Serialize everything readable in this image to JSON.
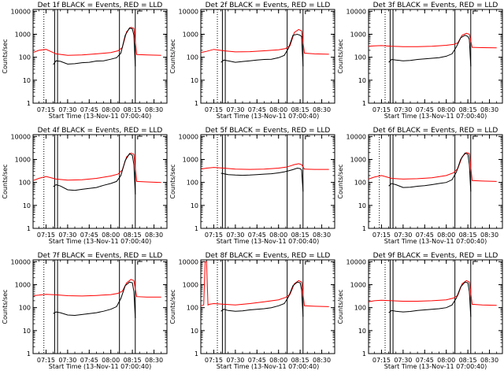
{
  "figure": {
    "colors": {
      "events": "#000000",
      "lld": "#ff0000",
      "axes": "#000000",
      "background": "#ffffff"
    }
  },
  "chart_data": [
    {
      "type": "line",
      "title": "Det 1f BLACK = Events, RED = LLD",
      "xlabel": "Start Time (13-Nov-11 07:00:40)",
      "ylabel": "Counts/sec",
      "x_ticks": [
        "07:15",
        "07:30",
        "07:45",
        "08:00",
        "08:15",
        "08:30"
      ],
      "y_ticks": [
        "1",
        "10",
        "100",
        "1000",
        "10000"
      ],
      "xlim": [
        "07:06",
        "08:39"
      ],
      "ylim": [
        1,
        12000
      ],
      "y_scale": "log",
      "dotted_lines": [
        "07:13.5"
      ],
      "solid_lines": [
        "07:21",
        "07:23",
        "08:06",
        "08:17"
      ],
      "series": [
        {
          "color": "#000000",
          "x": [
            "07:20",
            "07:22",
            "07:25",
            "07:30",
            "07:35",
            "07:40",
            "07:45",
            "07:50",
            "07:55",
            "08:00",
            "08:04",
            "08:07",
            "08:10",
            "08:13",
            "08:15",
            "08:16",
            "08:17"
          ],
          "values": [
            48,
            70,
            66,
            50,
            52,
            58,
            60,
            68,
            70,
            82,
            95,
            150,
            900,
            1900,
            1700,
            900,
            40
          ]
        },
        {
          "color": "#ff0000",
          "x": [
            "07:06",
            "07:10",
            "07:15",
            "07:22",
            "07:30",
            "07:40",
            "07:50",
            "08:00",
            "08:05",
            "08:08",
            "08:11",
            "08:14",
            "08:16",
            "08:18",
            "08:25",
            "08:35"
          ],
          "values": [
            160,
            200,
            220,
            140,
            120,
            125,
            140,
            160,
            190,
            260,
            1300,
            2000,
            1800,
            130,
            125,
            120
          ]
        }
      ]
    },
    {
      "type": "line",
      "title": "Det 2f BLACK = Events, RED = LLD",
      "xlabel": "Start Time (13-Nov-11 07:00:40)",
      "ylabel": "Counts/sec",
      "x_ticks": [
        "07:15",
        "07:30",
        "07:45",
        "08:00",
        "08:15",
        "08:30"
      ],
      "y_ticks": [
        "1",
        "10",
        "100",
        "1000",
        "10000"
      ],
      "xlim": [
        "07:06",
        "08:39"
      ],
      "ylim": [
        1,
        12000
      ],
      "y_scale": "log",
      "dotted_lines": [
        "07:17.5"
      ],
      "solid_lines": [
        "07:21",
        "07:23",
        "08:06",
        "08:17"
      ],
      "series": [
        {
          "color": "#000000",
          "x": [
            "07:20",
            "07:22",
            "07:25",
            "07:30",
            "07:35",
            "07:40",
            "07:45",
            "07:50",
            "07:55",
            "08:00",
            "08:04",
            "08:07",
            "08:10",
            "08:13",
            "08:15",
            "08:16",
            "08:17"
          ],
          "values": [
            60,
            75,
            70,
            60,
            65,
            70,
            75,
            80,
            82,
            95,
            120,
            250,
            900,
            1000,
            900,
            800,
            40
          ]
        },
        {
          "color": "#ff0000",
          "x": [
            "07:06",
            "07:10",
            "07:15",
            "07:22",
            "07:30",
            "07:40",
            "07:50",
            "08:00",
            "08:05",
            "08:08",
            "08:11",
            "08:14",
            "08:16",
            "08:18",
            "08:25",
            "08:35"
          ],
          "values": [
            160,
            180,
            220,
            190,
            170,
            175,
            190,
            210,
            240,
            320,
            1200,
            1600,
            1400,
            150,
            140,
            135
          ]
        }
      ]
    },
    {
      "type": "line",
      "title": "Det 3f BLACK = Events, RED = LLD",
      "xlabel": "Start Time (13-Nov-11 07:00:40)",
      "ylabel": "Counts/sec",
      "x_ticks": [
        "07:15",
        "07:30",
        "07:45",
        "08:00",
        "08:15",
        "08:30"
      ],
      "y_ticks": [
        "1",
        "10",
        "100",
        "1000",
        "10000"
      ],
      "xlim": [
        "07:06",
        "08:39"
      ],
      "ylim": [
        1,
        12000
      ],
      "y_scale": "log",
      "dotted_lines": [
        "07:17.5"
      ],
      "solid_lines": [
        "07:21",
        "07:23",
        "08:06",
        "08:17"
      ],
      "series": [
        {
          "color": "#000000",
          "x": [
            "07:20",
            "07:22",
            "07:25",
            "07:30",
            "07:35",
            "07:40",
            "07:45",
            "07:50",
            "07:55",
            "08:00",
            "08:04",
            "08:07",
            "08:10",
            "08:13",
            "08:15",
            "08:16",
            "08:17"
          ],
          "values": [
            60,
            80,
            75,
            70,
            72,
            80,
            85,
            90,
            95,
            110,
            140,
            280,
            700,
            900,
            800,
            600,
            40
          ]
        },
        {
          "color": "#ff0000",
          "x": [
            "07:06",
            "07:10",
            "07:15",
            "07:22",
            "07:30",
            "07:40",
            "07:50",
            "08:00",
            "08:05",
            "08:08",
            "08:11",
            "08:14",
            "08:16",
            "08:18",
            "08:25",
            "08:35"
          ],
          "values": [
            300,
            310,
            320,
            300,
            290,
            290,
            300,
            330,
            360,
            420,
            900,
            1100,
            1000,
            270,
            260,
            255
          ]
        }
      ]
    },
    {
      "type": "line",
      "title": "Det 4f BLACK = Events, RED = LLD",
      "xlabel": "Start Time (13-Nov-11 07:00:40)",
      "ylabel": "Counts/sec",
      "x_ticks": [
        "07:15",
        "07:30",
        "07:45",
        "08:00",
        "08:15",
        "08:30"
      ],
      "y_ticks": [
        "1",
        "10",
        "100",
        "1000",
        "10000"
      ],
      "xlim": [
        "07:06",
        "08:39"
      ],
      "ylim": [
        1,
        12000
      ],
      "y_scale": "log",
      "dotted_lines": [
        "07:13.5"
      ],
      "solid_lines": [
        "07:21",
        "07:23",
        "08:06",
        "08:17"
      ],
      "series": [
        {
          "color": "#000000",
          "x": [
            "07:20",
            "07:22",
            "07:25",
            "07:30",
            "07:35",
            "07:40",
            "07:45",
            "07:50",
            "07:55",
            "08:00",
            "08:04",
            "08:07",
            "08:10",
            "08:13",
            "08:15",
            "08:16",
            "08:17"
          ],
          "values": [
            65,
            80,
            70,
            48,
            45,
            50,
            55,
            60,
            75,
            90,
            110,
            200,
            900,
            1800,
            1500,
            600,
            30
          ]
        },
        {
          "color": "#ff0000",
          "x": [
            "07:06",
            "07:10",
            "07:15",
            "07:22",
            "07:30",
            "07:40",
            "07:50",
            "08:00",
            "08:05",
            "08:08",
            "08:11",
            "08:14",
            "08:16",
            "08:18",
            "08:25",
            "08:35"
          ],
          "values": [
            120,
            150,
            180,
            140,
            125,
            130,
            150,
            190,
            230,
            350,
            1300,
            1900,
            1700,
            110,
            105,
            100
          ]
        }
      ]
    },
    {
      "type": "line",
      "title": "Det 5f BLACK = Events, RED = LLD",
      "xlabel": "Start Time (13-Nov-11 07:00:40)",
      "ylabel": "Counts/sec",
      "x_ticks": [
        "07:15",
        "07:30",
        "07:45",
        "08:00",
        "08:15",
        "08:30"
      ],
      "y_ticks": [
        "1",
        "10",
        "100",
        "1000",
        "10000"
      ],
      "xlim": [
        "07:06",
        "08:39"
      ],
      "ylim": [
        1,
        12000
      ],
      "y_scale": "log",
      "dotted_lines": [
        "07:17.5"
      ],
      "solid_lines": [
        "07:21",
        "07:23",
        "08:06",
        "08:17"
      ],
      "series": [
        {
          "color": "#000000",
          "x": [
            "07:20",
            "07:22",
            "07:25",
            "07:30",
            "07:35",
            "07:40",
            "07:45",
            "07:50",
            "07:55",
            "08:00",
            "08:04",
            "08:07",
            "08:10",
            "08:13",
            "08:15",
            "08:16",
            "08:17"
          ],
          "values": [
            250,
            240,
            220,
            210,
            205,
            210,
            220,
            230,
            240,
            260,
            290,
            320,
            360,
            420,
            400,
            350,
            40
          ]
        },
        {
          "color": "#ff0000",
          "x": [
            "07:06",
            "07:10",
            "07:15",
            "07:22",
            "07:30",
            "07:40",
            "07:50",
            "08:00",
            "08:05",
            "08:08",
            "08:11",
            "08:14",
            "08:16",
            "08:18",
            "08:25",
            "08:35"
          ],
          "values": [
            380,
            420,
            450,
            420,
            380,
            370,
            380,
            420,
            460,
            520,
            600,
            650,
            600,
            380,
            370,
            370
          ]
        }
      ]
    },
    {
      "type": "line",
      "title": "Det 6f BLACK = Events, RED = LLD",
      "xlabel": "Start Time (13-Nov-11 07:00:40)",
      "ylabel": "Counts/sec",
      "x_ticks": [
        "07:15",
        "07:30",
        "07:45",
        "08:00",
        "08:15",
        "08:30"
      ],
      "y_ticks": [
        "1",
        "10",
        "100",
        "1000",
        "10000"
      ],
      "xlim": [
        "07:06",
        "08:39"
      ],
      "ylim": [
        1,
        12000
      ],
      "y_scale": "log",
      "dotted_lines": [
        "07:13.5"
      ],
      "solid_lines": [
        "07:21",
        "07:23",
        "08:06",
        "08:17"
      ],
      "series": [
        {
          "color": "#000000",
          "x": [
            "07:20",
            "07:22",
            "07:25",
            "07:30",
            "07:35",
            "07:40",
            "07:45",
            "07:50",
            "07:55",
            "08:00",
            "08:04",
            "08:07",
            "08:10",
            "08:13",
            "08:15",
            "08:16",
            "08:17"
          ],
          "values": [
            70,
            90,
            80,
            60,
            62,
            68,
            72,
            80,
            90,
            100,
            130,
            280,
            1000,
            1900,
            1700,
            600,
            40
          ]
        },
        {
          "color": "#ff0000",
          "x": [
            "07:06",
            "07:10",
            "07:15",
            "07:22",
            "07:30",
            "07:40",
            "07:50",
            "08:00",
            "08:05",
            "08:08",
            "08:11",
            "08:14",
            "08:16",
            "08:18",
            "08:25",
            "08:35"
          ],
          "values": [
            140,
            170,
            200,
            150,
            140,
            145,
            160,
            200,
            260,
            400,
            1300,
            2000,
            1800,
            120,
            115,
            110
          ]
        }
      ]
    },
    {
      "type": "line",
      "title": "Det 7f BLACK = Events, RED = LLD",
      "xlabel": "Start Time (13-Nov-11 07:00:40)",
      "ylabel": "Counts/sec",
      "x_ticks": [
        "07:15",
        "07:30",
        "07:45",
        "08:00",
        "08:15",
        "08:30"
      ],
      "y_ticks": [
        "1",
        "10",
        "100",
        "1000",
        "10000"
      ],
      "xlim": [
        "07:06",
        "08:39"
      ],
      "ylim": [
        1,
        12000
      ],
      "y_scale": "log",
      "dotted_lines": [
        "07:13.5"
      ],
      "solid_lines": [
        "07:21",
        "07:23",
        "08:06",
        "08:17"
      ],
      "series": [
        {
          "color": "#000000",
          "x": [
            "07:20",
            "07:22",
            "07:25",
            "07:30",
            "07:35",
            "07:40",
            "07:45",
            "07:50",
            "07:55",
            "08:00",
            "08:04",
            "08:07",
            "08:10",
            "08:13",
            "08:15",
            "08:16",
            "08:17"
          ],
          "values": [
            55,
            65,
            60,
            48,
            46,
            50,
            55,
            60,
            70,
            85,
            110,
            250,
            900,
            1300,
            1200,
            500,
            35
          ]
        },
        {
          "color": "#ff0000",
          "x": [
            "07:06",
            "07:10",
            "07:15",
            "07:22",
            "07:30",
            "07:40",
            "07:50",
            "08:00",
            "08:05",
            "08:08",
            "08:11",
            "08:14",
            "08:16",
            "08:18",
            "08:25",
            "08:35"
          ],
          "values": [
            330,
            350,
            380,
            360,
            330,
            320,
            340,
            370,
            420,
            520,
            1200,
            1700,
            1500,
            300,
            290,
            290
          ]
        }
      ]
    },
    {
      "type": "line",
      "title": "Det 8f BLACK = Events, RED = LLD",
      "xlabel": "Start Time (13-Nov-11 07:00:40)",
      "ylabel": "Counts/sec",
      "x_ticks": [
        "07:15",
        "07:30",
        "07:45",
        "08:00",
        "08:15",
        "08:30"
      ],
      "y_ticks": [
        "1",
        "10",
        "100",
        "1000",
        "10000"
      ],
      "xlim": [
        "07:06",
        "08:39"
      ],
      "ylim": [
        1,
        12000
      ],
      "y_scale": "log",
      "dotted_lines": [
        "07:17.5"
      ],
      "solid_lines": [
        "07:21",
        "07:23",
        "08:06",
        "08:17"
      ],
      "series": [
        {
          "color": "#000000",
          "x": [
            "07:20",
            "07:22",
            "07:25",
            "07:30",
            "07:35",
            "07:40",
            "07:45",
            "07:50",
            "07:55",
            "08:00",
            "08:04",
            "08:07",
            "08:10",
            "08:13",
            "08:15",
            "08:16",
            "08:17"
          ],
          "values": [
            70,
            85,
            75,
            70,
            72,
            80,
            85,
            90,
            100,
            120,
            150,
            300,
            900,
            1300,
            1200,
            600,
            40
          ]
        },
        {
          "color": "#ff0000",
          "x": [
            "07:06",
            "07:08",
            "07:09",
            "07:10",
            "07:11",
            "07:12",
            "07:15",
            "07:22",
            "07:30",
            "07:40",
            "07:50",
            "08:00",
            "08:05",
            "08:08",
            "08:11",
            "08:14",
            "08:16",
            "08:18",
            "08:25",
            "08:35"
          ],
          "values": [
            120,
            130,
            10000,
            10000,
            130,
            140,
            150,
            140,
            130,
            150,
            180,
            220,
            280,
            380,
            1100,
            1500,
            1300,
            120,
            115,
            110
          ]
        }
      ]
    },
    {
      "type": "line",
      "title": "Det 9f BLACK = Events, RED = LLD",
      "xlabel": "Start Time (13-Nov-11 07:00:40)",
      "ylabel": "Counts/sec",
      "x_ticks": [
        "07:15",
        "07:30",
        "07:45",
        "08:00",
        "08:15",
        "08:30"
      ],
      "y_ticks": [
        "1",
        "10",
        "100",
        "1000",
        "10000"
      ],
      "xlim": [
        "07:06",
        "08:39"
      ],
      "ylim": [
        1,
        12000
      ],
      "y_scale": "log",
      "dotted_lines": [
        "07:17.5"
      ],
      "solid_lines": [
        "07:21",
        "07:23",
        "08:06",
        "08:17"
      ],
      "series": [
        {
          "color": "#000000",
          "x": [
            "07:20",
            "07:22",
            "07:25",
            "07:30",
            "07:35",
            "07:40",
            "07:45",
            "07:50",
            "07:55",
            "08:00",
            "08:04",
            "08:07",
            "08:10",
            "08:13",
            "08:15",
            "08:16",
            "08:17"
          ],
          "values": [
            60,
            75,
            70,
            65,
            68,
            75,
            80,
            85,
            90,
            100,
            130,
            260,
            800,
            1300,
            1200,
            500,
            40
          ]
        },
        {
          "color": "#ff0000",
          "x": [
            "07:06",
            "07:10",
            "07:15",
            "07:22",
            "07:30",
            "07:40",
            "07:50",
            "08:00",
            "08:05",
            "08:08",
            "08:11",
            "08:14",
            "08:16",
            "08:18",
            "08:25",
            "08:35"
          ],
          "values": [
            180,
            200,
            210,
            200,
            190,
            190,
            200,
            220,
            260,
            340,
            1100,
            1500,
            1300,
            140,
            130,
            125
          ]
        }
      ]
    }
  ]
}
